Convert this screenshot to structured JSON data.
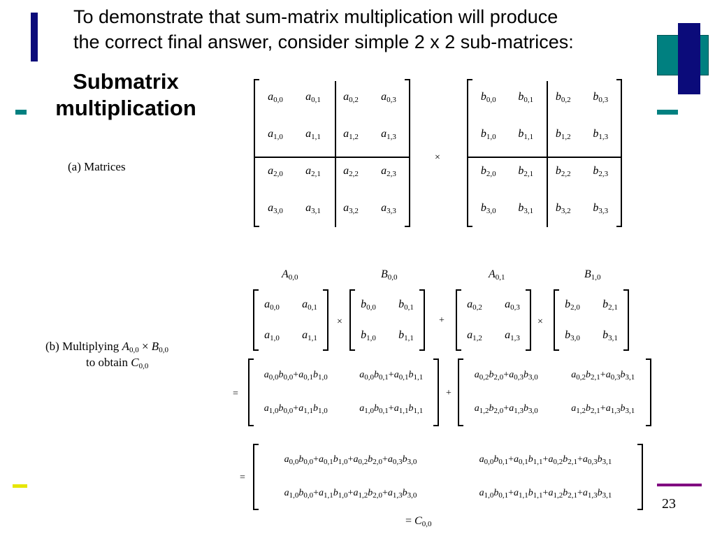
{
  "title": {
    "line1": "To demonstrate that sum-matrix multiplication will produce",
    "line2": "the correct final answer, consider simple 2 x 2 sub-matrices:"
  },
  "heading": {
    "line1": "Submatrix",
    "line2": "multiplication"
  },
  "page_number": "23",
  "colors": {
    "navy": "#0b0b7a",
    "teal": "#008080",
    "yellow": "#e6e600",
    "purple": "#800080"
  },
  "part_a": {
    "caption": "(a) Matrices",
    "times": "×",
    "matrix_a": [
      [
        "a_0,0",
        "a_0,1",
        "a_0,2",
        "a_0,3"
      ],
      [
        "a_1,0",
        "a_1,1",
        "a_1,2",
        "a_1,3"
      ],
      [
        "a_2,0",
        "a_2,1",
        "a_2,2",
        "a_2,3"
      ],
      [
        "a_3,0",
        "a_3,1",
        "a_3,2",
        "a_3,3"
      ]
    ],
    "matrix_b": [
      [
        "b_0,0",
        "b_0,1",
        "b_0,2",
        "b_0,3"
      ],
      [
        "b_1,0",
        "b_1,1",
        "b_1,2",
        "b_1,3"
      ],
      [
        "b_2,0",
        "b_2,1",
        "b_2,2",
        "b_2,3"
      ],
      [
        "b_3,0",
        "b_3,1",
        "b_3,2",
        "b_3,3"
      ]
    ]
  },
  "part_b": {
    "caption_line1": [
      "(b) Multiplying ",
      "A_0,0",
      " × ",
      "B_0,0"
    ],
    "caption_line2": [
      "to obtain ",
      "C_0,0"
    ],
    "labels": [
      "A_0,0",
      "B_0,0",
      "A_0,1",
      "B_1,0"
    ],
    "times": "×",
    "plus": "+",
    "equals": "=",
    "m1": [
      [
        "a_0,0",
        "a_0,1"
      ],
      [
        "a_1,0",
        "a_1,1"
      ]
    ],
    "m2": [
      [
        "b_0,0",
        "b_0,1"
      ],
      [
        "b_1,0",
        "b_1,1"
      ]
    ],
    "m3": [
      [
        "a_0,2",
        "a_0,3"
      ],
      [
        "a_1,2",
        "a_1,3"
      ]
    ],
    "m4": [
      [
        "b_2,0",
        "b_2,1"
      ],
      [
        "b_3,0",
        "b_3,1"
      ]
    ],
    "p1": [
      [
        "a_0,0 b_0,0 + a_0,1 b_1,0",
        "a_0,0 b_0,1 + a_0,1 b_1,1"
      ],
      [
        "a_1,0 b_0,0 + a_1,1 b_1,0",
        "a_1,0 b_0,1 + a_1,1 b_1,1"
      ]
    ],
    "p2": [
      [
        "a_0,2 b_2,0 + a_0,3 b_3,0",
        "a_0,2 b_2,1 + a_0,3 b_3,1"
      ],
      [
        "a_1,2 b_2,0 + a_1,3 b_3,0",
        "a_1,2 b_2,1 + a_1,3 b_3,1"
      ]
    ],
    "result": [
      [
        "a_0,0 b_0,0 + a_0,1 b_1,0 + a_0,2 b_2,0 + a_0,3 b_3,0",
        "a_0,0 b_0,1 + a_0,1 b_1,1 + a_0,2 b_2,1 + a_0,3 b_3,1"
      ],
      [
        "a_1,0 b_0,0 + a_1,1 b_1,0 + a_1,2 b_2,0 + a_1,3 b_3,0",
        "a_1,0 b_0,1 + a_1,1 b_1,1 + a_1,2 b_2,1 + a_1,3 b_3,1"
      ]
    ],
    "final": [
      "= ",
      "C_0,0"
    ]
  }
}
